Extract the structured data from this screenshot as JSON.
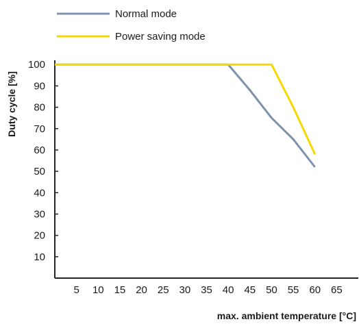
{
  "chart_data": {
    "type": "line",
    "title": "",
    "xlabel": "max. ambient temperature [°C]",
    "ylabel": "Duty cycle [%]",
    "xlim": [
      0,
      70
    ],
    "ylim": [
      0,
      102
    ],
    "x_ticks": [
      5,
      10,
      15,
      20,
      25,
      30,
      35,
      40,
      45,
      50,
      55,
      60,
      65
    ],
    "y_ticks": [
      10,
      20,
      30,
      40,
      50,
      60,
      70,
      80,
      90,
      100
    ],
    "grid": false,
    "legend_position": "top",
    "series": [
      {
        "name": "Normal mode",
        "color": "#7b93ad",
        "points": [
          [
            0,
            100
          ],
          [
            40,
            100
          ],
          [
            45,
            88
          ],
          [
            50,
            75
          ],
          [
            55,
            65
          ],
          [
            60,
            52
          ]
        ]
      },
      {
        "name": "Power saving mode",
        "color": "#f5d800",
        "points": [
          [
            0,
            100
          ],
          [
            50,
            100
          ],
          [
            55,
            80
          ],
          [
            60,
            58
          ]
        ]
      }
    ]
  }
}
